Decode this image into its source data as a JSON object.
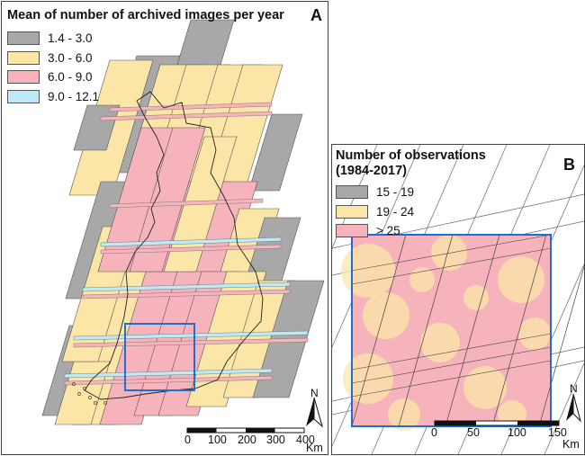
{
  "panel_a": {
    "letter": "A",
    "legend_title": "Mean of number of archived images per year",
    "legend": [
      {
        "label": "1.4 - 3.0",
        "color": "#a8a8a8"
      },
      {
        "label": "3.0 - 6.0",
        "color": "#fbe6a8"
      },
      {
        "label": "6.0 - 9.0",
        "color": "#f6b3bc"
      },
      {
        "label": "9.0 - 12.1",
        "color": "#bdeaf6"
      }
    ],
    "scale_ticks": [
      "0",
      "100",
      "200",
      "300",
      "400"
    ],
    "scale_unit": "Km",
    "north": "N"
  },
  "panel_b": {
    "letter": "B",
    "legend_title_line1": "Number of observations",
    "legend_title_line2": "(1984-2017)",
    "legend": [
      {
        "label": "15 - 19",
        "color": "#a8a8a8"
      },
      {
        "label": "19 - 24",
        "color": "#fbe6a8"
      },
      {
        "label": "> 25",
        "color": "#f6b3bc"
      }
    ],
    "scale_ticks": [
      "0",
      "50",
      "100",
      "150"
    ],
    "scale_unit": "Km",
    "north": "N"
  },
  "colors": {
    "gray": "#a8a8a8",
    "yellow": "#fbe6a8",
    "pink": "#f6b3bc",
    "blue": "#bdeaf6",
    "frame": "#1f6fd1"
  }
}
